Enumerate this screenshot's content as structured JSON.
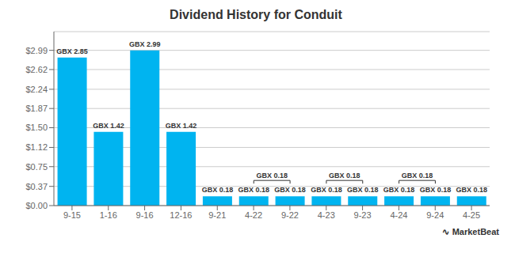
{
  "chart_data": {
    "type": "bar",
    "title": "Dividend History for Conduit",
    "categories": [
      "9-15",
      "1-16",
      "9-16",
      "12-16",
      "9-21",
      "4-22",
      "9-22",
      "4-23",
      "9-23",
      "4-24",
      "9-24",
      "4-25"
    ],
    "values": [
      2.85,
      1.42,
      2.99,
      1.42,
      0.18,
      0.18,
      0.18,
      0.18,
      0.18,
      0.18,
      0.18,
      0.18
    ],
    "value_labels": [
      "GBX 2.85",
      "GBX 1.42",
      "GBX 2.99",
      "GBX 1.42",
      "GBX 0.18",
      "GBX 0.18",
      "GBX 0.18",
      "GBX 0.18",
      "GBX 0.18",
      "GBX 0.18",
      "GBX 0.18",
      "GBX 0.18"
    ],
    "data_labels": true,
    "color": "#00b4f0",
    "ylim": [
      0,
      3.35
    ],
    "yticks": [
      {
        "value": 0.0,
        "label": "$0.00"
      },
      {
        "value": 0.37,
        "label": "$0.37"
      },
      {
        "value": 0.75,
        "label": "$0.75"
      },
      {
        "value": 1.12,
        "label": "$1.12"
      },
      {
        "value": 1.5,
        "label": "$1.50"
      },
      {
        "value": 1.87,
        "label": "$1.87"
      },
      {
        "value": 2.24,
        "label": "$2.24"
      },
      {
        "value": 2.62,
        "label": "$2.62"
      },
      {
        "value": 2.99,
        "label": "$2.99"
      }
    ],
    "grid": true,
    "annotations": [
      {
        "text": "GBX 0.18",
        "from": "4-22",
        "to": "9-22"
      },
      {
        "text": "GBX 0.18",
        "from": "4-23",
        "to": "9-23"
      },
      {
        "text": "GBX 0.18",
        "from": "4-24",
        "to": "9-24"
      },
      {
        "text": "∿"
      },
      {
        "text": "MarketBeat"
      }
    ]
  }
}
